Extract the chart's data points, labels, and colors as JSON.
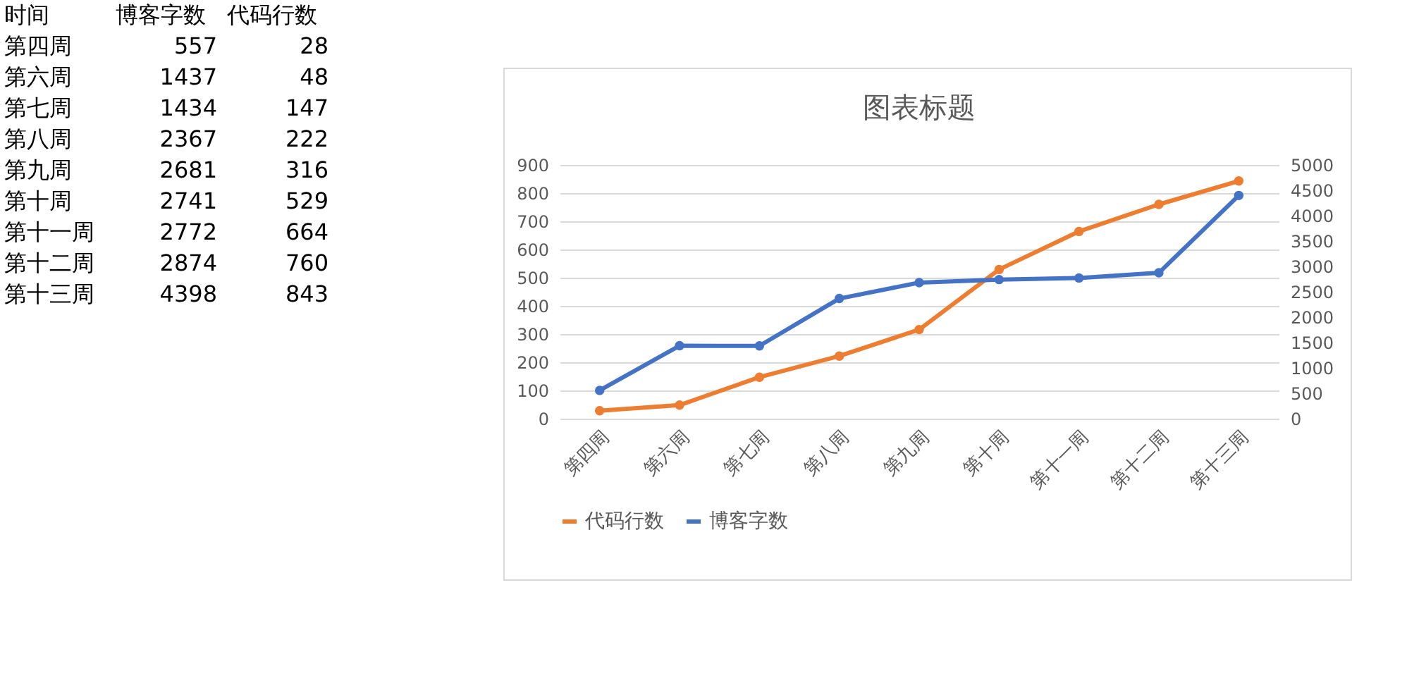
{
  "chart_data": [
    {
      "type": "other",
      "annotations": [
        "时间"
      ],
      "data_labels": true,
      "categories": [
        "第四周",
        "第六周",
        "第七周",
        "第八周",
        "第九周",
        "第十周",
        "第十一周",
        "第十二周",
        "第十三周"
      ],
      "series": [
        {
          "name": "博客字数",
          "values": [
            557,
            1437,
            1434,
            2367,
            2681,
            2741,
            2772,
            2874,
            4398
          ]
        },
        {
          "name": "代码行数",
          "values": [
            28,
            48,
            147,
            222,
            316,
            529,
            664,
            760,
            843
          ]
        }
      ]
    },
    {
      "type": "line",
      "title": "图表标题",
      "categories": [
        "第四周",
        "第六周",
        "第七周",
        "第八周",
        "第九周",
        "第十周",
        "第十一周",
        "第十二周",
        "第十三周"
      ],
      "series": [
        {
          "name": "代码行数",
          "color": "#ed7d31",
          "values": [
            28,
            48,
            147,
            222,
            316,
            529,
            664,
            760,
            843
          ]
        },
        {
          "name": "博客字数",
          "color": "#4472c4",
          "axis": "y2",
          "values": [
            557,
            1437,
            1434,
            2367,
            2681,
            2741,
            2772,
            2874,
            4398
          ]
        }
      ],
      "ylim": [
        0,
        900
      ],
      "yticks": [
        0,
        100,
        200,
        300,
        400,
        500,
        600,
        700,
        800,
        900
      ],
      "y2lim": [
        0,
        5000
      ],
      "y2ticks": [
        0,
        500,
        1000,
        1500,
        2000,
        2500,
        3000,
        3500,
        4000,
        4500,
        5000
      ],
      "grid": "y",
      "legend": "bottom",
      "marker": "circle",
      "line_style": "solid"
    }
  ]
}
